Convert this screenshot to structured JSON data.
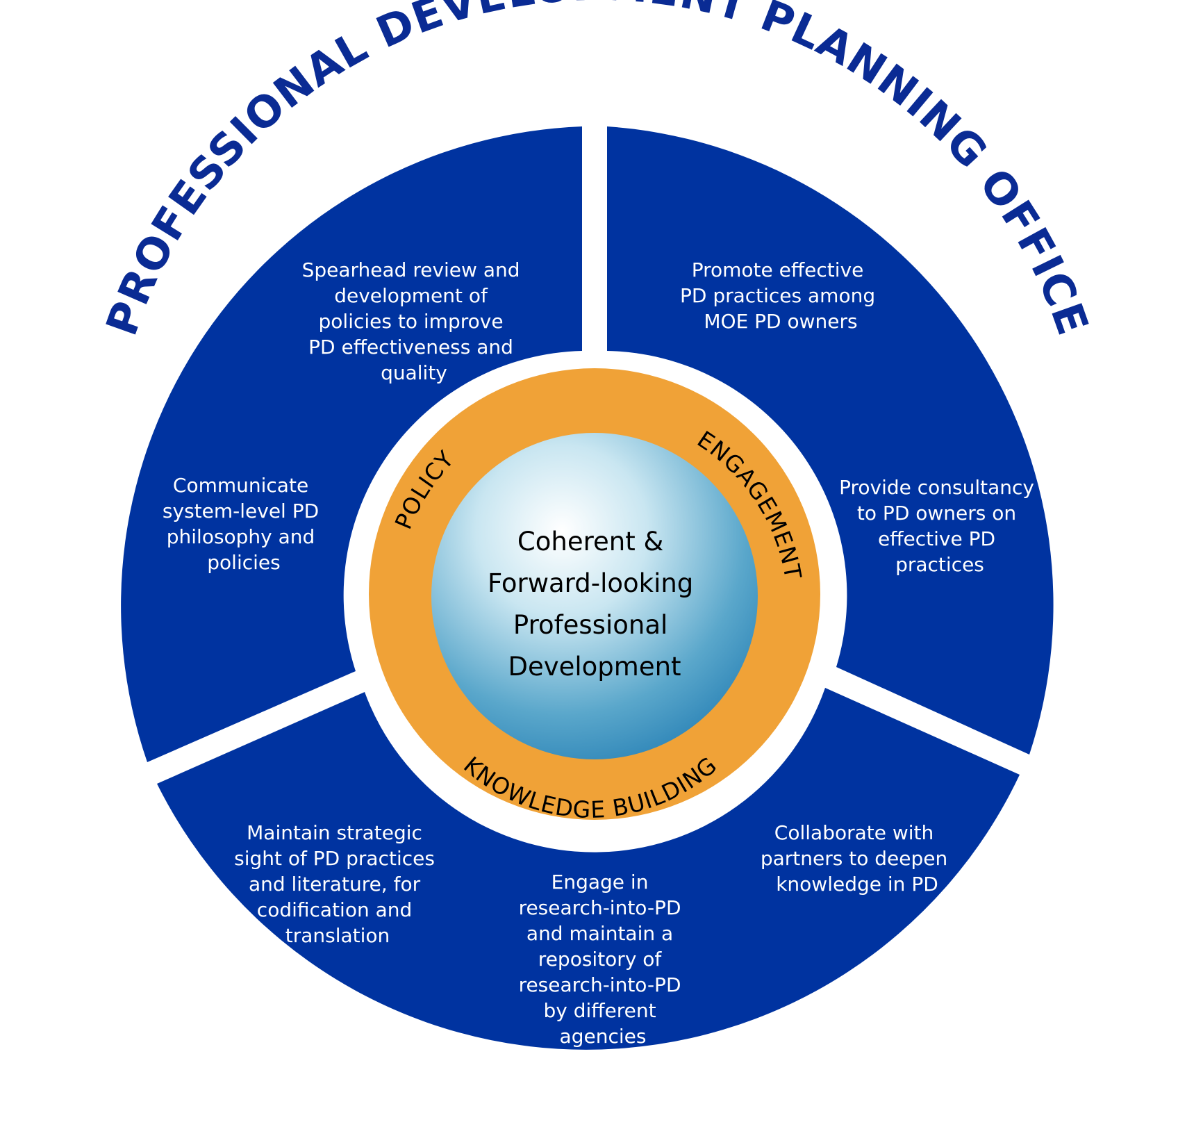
{
  "title": "PROFESSIONAL DEVELOPMENT PLANNING OFFICE",
  "center": {
    "lines": [
      "Coherent &",
      "Forward-looking",
      "Professional",
      "Development"
    ]
  },
  "ring_labels": {
    "policy": "POLICY",
    "engagement": "ENGAGEMENT",
    "knowledge_building": "KNOWLEDGE BUILDING"
  },
  "segments": {
    "policy": [
      {
        "lines": [
          "Spearhead review and",
          "development of",
          "policies to improve",
          "PD effectiveness and",
          "quality"
        ]
      },
      {
        "lines": [
          "Communicate",
          "system-level PD",
          "philosophy and",
          "policies"
        ]
      }
    ],
    "engagement": [
      {
        "lines": [
          "Promote effective",
          "PD practices among",
          "MOE PD owners"
        ]
      },
      {
        "lines": [
          "Provide consultancy",
          "to PD owners on",
          "effective PD",
          "practices"
        ]
      }
    ],
    "knowledge_building": [
      {
        "lines": [
          "Maintain strategic",
          "sight of PD practices",
          "and literature, for",
          "codification and",
          "translation"
        ]
      },
      {
        "lines": [
          "Engage in",
          "research-into-PD",
          "and maintain a",
          "repository of",
          "research-into-PD",
          "by different",
          "agencies"
        ]
      },
      {
        "lines": [
          "Collaborate with",
          "partners to deepen",
          "knowledge in PD"
        ]
      }
    ]
  },
  "colors": {
    "segment_blue": "#0033a0",
    "title_blue": "#0a2b94",
    "ring_orange": "#f0a237",
    "core_light": "#ffffff",
    "core_dark": "#2f86b8",
    "text_white": "#ffffff"
  }
}
